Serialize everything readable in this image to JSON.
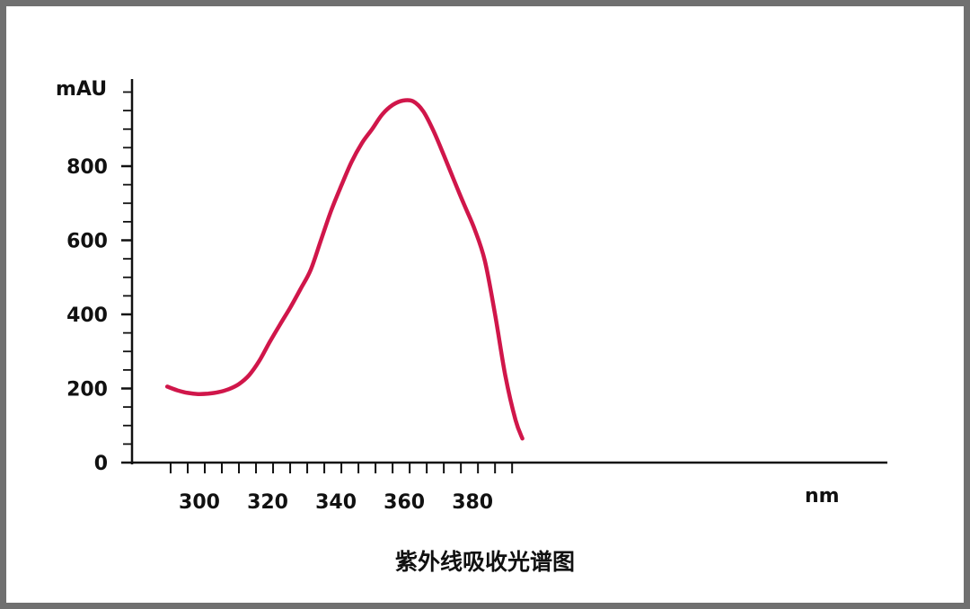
{
  "caption": "紫外线吸收光谱图",
  "chart_data": {
    "type": "line",
    "title": "",
    "xlabel": "nm",
    "ylabel": "mAU",
    "xlim": [
      290,
      392
    ],
    "ylim": [
      0,
      1000
    ],
    "x_ticks": [
      300,
      320,
      340,
      360,
      380
    ],
    "y_ticks": [
      0,
      200,
      400,
      600,
      800
    ],
    "line_color": "#d0164a",
    "series": [
      {
        "x": [
          289,
          292,
          295,
          298,
          301,
          304,
          307,
          310,
          313,
          316,
          319,
          322,
          325,
          328,
          331,
          334,
          337,
          340,
          343,
          346,
          349,
          352,
          355,
          358,
          361,
          364,
          367,
          370,
          373,
          376,
          379,
          382,
          385,
          388,
          391,
          393
        ],
        "y": [
          205,
          195,
          188,
          185,
          186,
          190,
          198,
          212,
          236,
          275,
          325,
          372,
          418,
          468,
          520,
          600,
          680,
          748,
          812,
          862,
          900,
          940,
          965,
          977,
          975,
          948,
          895,
          830,
          762,
          695,
          630,
          545,
          400,
          235,
          115,
          65
        ]
      }
    ]
  }
}
